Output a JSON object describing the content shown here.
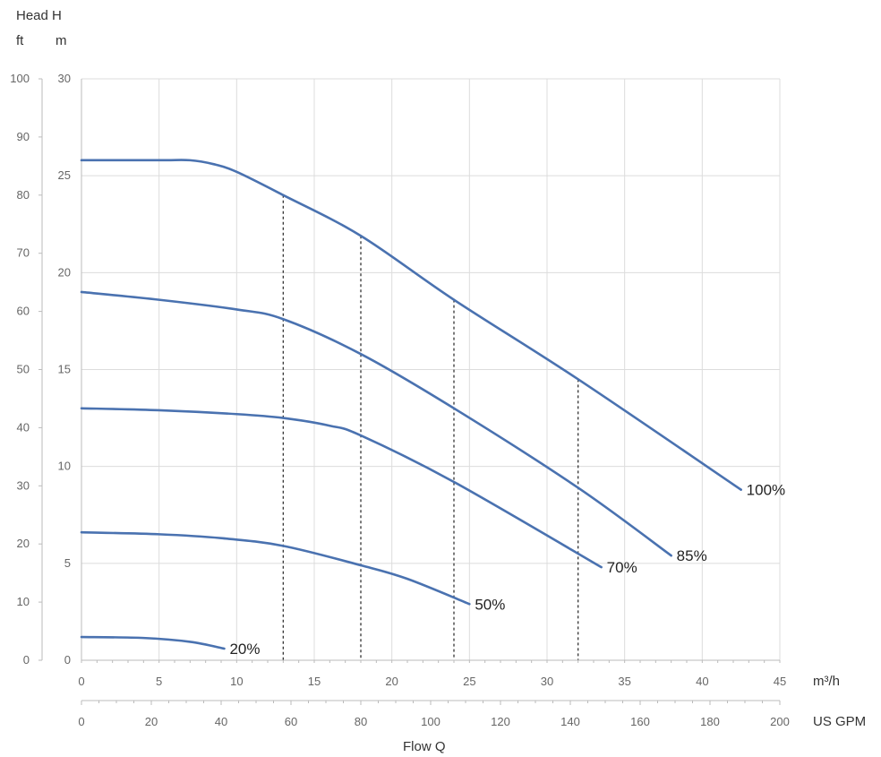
{
  "chart_data": {
    "type": "line",
    "head_title": "Head  H",
    "head_units": {
      "ft": "ft",
      "m": "m"
    },
    "flow_title": "Flow  Q",
    "x_unit_m3h": "m³/h",
    "x_unit_gpm": "US GPM",
    "xlim_m3h": [
      0,
      45
    ],
    "xlim_gpm": [
      0,
      200
    ],
    "ylim_m": [
      0,
      30
    ],
    "ylim_ft": [
      0,
      100
    ],
    "x_ticks_m3h": [
      "0",
      "5",
      "10",
      "15",
      "20",
      "25",
      "30",
      "35",
      "40",
      "45"
    ],
    "x_ticks_gpm": [
      "0",
      "20",
      "40",
      "60",
      "80",
      "100",
      "120",
      "140",
      "160",
      "180",
      "200"
    ],
    "y_ticks_m": [
      "0",
      "5",
      "10",
      "15",
      "20",
      "25",
      "30"
    ],
    "y_ticks_ft": [
      "0",
      "10",
      "20",
      "30",
      "40",
      "50",
      "60",
      "70",
      "80",
      "90",
      "100"
    ],
    "grid": true,
    "line_color": "#4a72b0",
    "reference_lines_m3h": [
      13,
      18,
      24,
      32
    ],
    "series": [
      {
        "name": "100%",
        "x": [
          0,
          5,
          7,
          8.5,
          10,
          13,
          18,
          24,
          32,
          42.5
        ],
        "y": [
          25.8,
          25.8,
          25.8,
          25.6,
          25.2,
          24.0,
          21.9,
          18.6,
          14.5,
          8.8
        ]
      },
      {
        "name": "85%",
        "x": [
          0,
          5,
          10,
          13,
          18,
          24,
          32,
          38
        ],
        "y": [
          19.0,
          18.6,
          18.1,
          17.6,
          15.8,
          13.0,
          8.9,
          5.4
        ]
      },
      {
        "name": "70%",
        "x": [
          0,
          5,
          10,
          13,
          16,
          18,
          24,
          33.5
        ],
        "y": [
          13.0,
          12.9,
          12.7,
          12.5,
          12.1,
          11.6,
          9.2,
          4.8
        ]
      },
      {
        "name": "50%",
        "x": [
          0,
          5,
          9,
          13,
          18,
          21,
          25
        ],
        "y": [
          6.6,
          6.5,
          6.3,
          5.9,
          4.9,
          4.2,
          2.9
        ]
      },
      {
        "name": "20%",
        "x": [
          0,
          4,
          7,
          9.2
        ],
        "y": [
          1.2,
          1.15,
          0.95,
          0.6
        ]
      }
    ]
  }
}
